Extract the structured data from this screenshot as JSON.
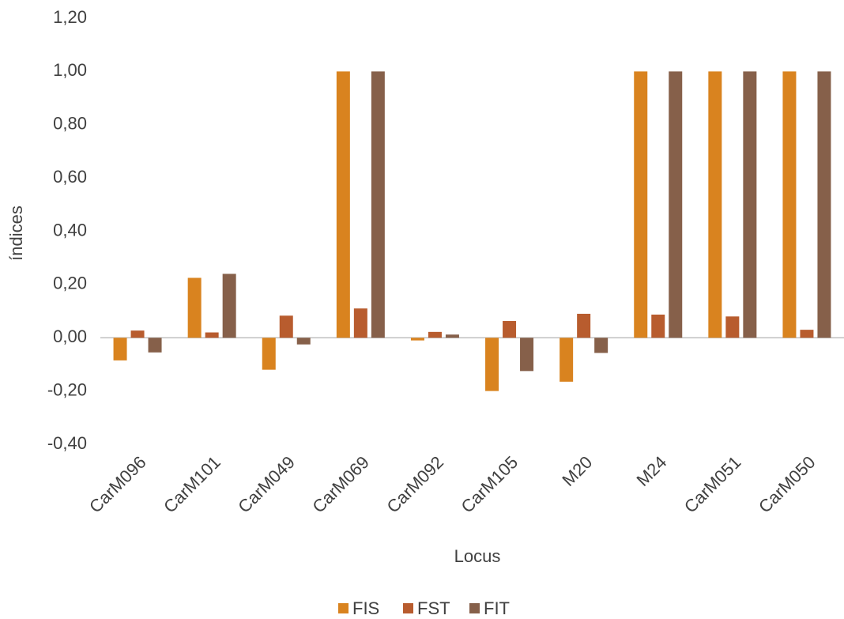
{
  "chart_data": {
    "type": "bar",
    "x_label": "Locus",
    "y_label": "índices",
    "categories": [
      "CarM096",
      "CarM101",
      "CarM049",
      "CarM069",
      "CarM092",
      "CarM105",
      "M20",
      "M24",
      "CarM051",
      "CarM050"
    ],
    "series": [
      {
        "name": "FIS",
        "color": "#d9831f",
        "values": [
          -0.085,
          0.225,
          -0.12,
          1.0,
          -0.01,
          -0.2,
          -0.165,
          1.0,
          1.0,
          1.0
        ]
      },
      {
        "name": "FST",
        "color": "#b85c2e",
        "values": [
          0.027,
          0.02,
          0.083,
          0.11,
          0.022,
          0.063,
          0.09,
          0.087,
          0.08,
          0.03
        ]
      },
      {
        "name": "FIT",
        "color": "#86604a",
        "values": [
          -0.055,
          0.24,
          -0.025,
          1.0,
          0.012,
          -0.125,
          -0.057,
          1.0,
          1.0,
          1.0
        ]
      }
    ],
    "ylim": [
      -0.4,
      1.2
    ],
    "yticks": [
      {
        "value": -0.4,
        "label": "-0,40"
      },
      {
        "value": -0.2,
        "label": "-0,20"
      },
      {
        "value": 0,
        "label": "0,00"
      },
      {
        "value": 0.2,
        "label": "0,20"
      },
      {
        "value": 0.4,
        "label": "0,40"
      },
      {
        "value": 0.6,
        "label": "0,60"
      },
      {
        "value": 0.8,
        "label": "0,80"
      },
      {
        "value": 1.0,
        "label": "1,00"
      },
      {
        "value": 1.2,
        "label": "1,20"
      }
    ],
    "grid": false,
    "legend": "bottom"
  }
}
